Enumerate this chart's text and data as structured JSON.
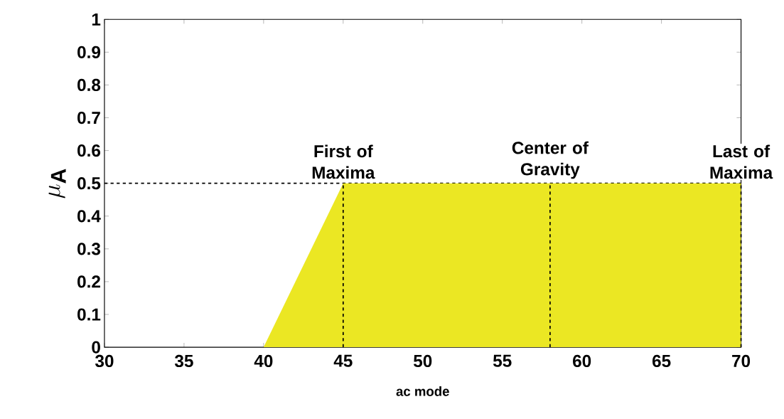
{
  "chart_data": {
    "type": "area",
    "xlabel": "ac mode",
    "ylabel": "\\mu_{\\mathbf{A}}",
    "x": [
      40,
      45,
      70
    ],
    "series": [
      {
        "color": "#ebe723",
        "values": [
          0,
          0.5,
          0.5
        ]
      }
    ],
    "xlim": [
      30,
      70
    ],
    "ylim": [
      0,
      1
    ],
    "xticks": [
      30,
      35,
      40,
      45,
      50,
      55,
      60,
      65,
      70
    ],
    "yticks": [
      0,
      0.1,
      0.2,
      0.3,
      0.4,
      0.5,
      0.6,
      0.7,
      0.8,
      0.9,
      1
    ],
    "ref_lines": [
      {
        "axis": "y",
        "value": 0.5,
        "line_style": "dashed"
      },
      {
        "axis": "x",
        "value": 45,
        "label": "First of Maxima",
        "line_style": "dashed"
      },
      {
        "axis": "x",
        "value": 58,
        "label": "Center of Gravity",
        "line_style": "dashed"
      },
      {
        "axis": "x",
        "value": 70,
        "label": "Last of Maxima",
        "line_style": "dashed"
      }
    ],
    "grid": false
  }
}
